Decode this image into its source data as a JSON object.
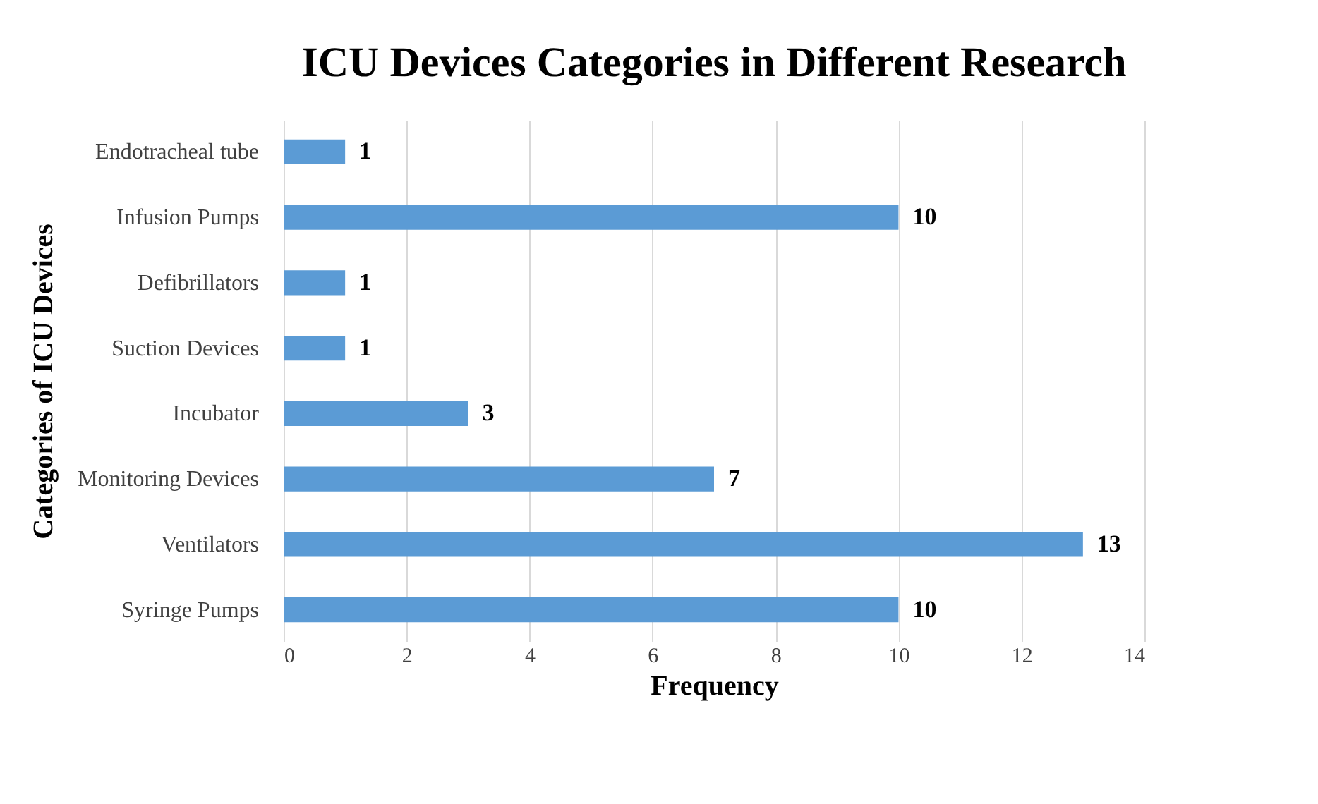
{
  "chart_data": {
    "type": "bar",
    "orientation": "horizontal",
    "title": "ICU Devices Categories in Different Research",
    "xlabel": "Frequency",
    "ylabel": "Categories of ICU Devices",
    "categories": [
      "Endotracheal tube",
      "Infusion Pumps",
      "Defibrillators",
      "Suction Devices",
      "Incubator",
      "Monitoring Devices",
      "Ventilators",
      "Syringe Pumps"
    ],
    "values": [
      1,
      10,
      1,
      1,
      3,
      7,
      13,
      10
    ],
    "color": "#5b9bd5",
    "xlim": [
      0,
      14
    ],
    "xticks": [
      0,
      2,
      4,
      6,
      8,
      10,
      12,
      14
    ],
    "grid": "x",
    "data_labels": true
  }
}
